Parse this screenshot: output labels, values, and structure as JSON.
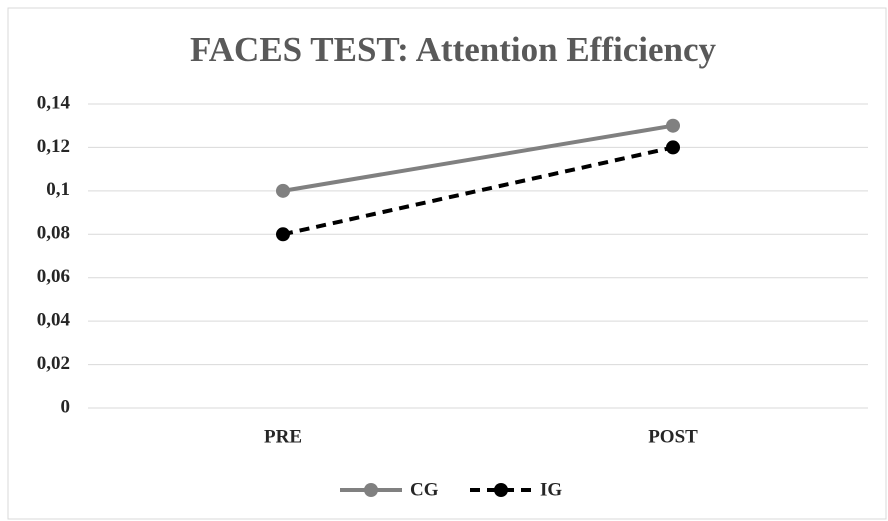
{
  "chart_data": {
    "type": "line",
    "title": "FACES TEST: Attention Efficiency",
    "categories": [
      "PRE",
      "POST"
    ],
    "series": [
      {
        "name": "CG",
        "color": "#808080",
        "line_style": "solid",
        "values": [
          0.1,
          0.13
        ]
      },
      {
        "name": "IG",
        "color": "#000000",
        "line_style": "dashed",
        "values": [
          0.08,
          0.12
        ]
      }
    ],
    "ylim": [
      0,
      0.14
    ],
    "yticks": [
      0,
      {
        "value": 0.02,
        "label": "0,02"
      },
      {
        "value": 0.04,
        "label": "0,04"
      },
      {
        "value": 0.06,
        "label": "0,06"
      },
      {
        "value": 0.08,
        "label": "0,08"
      },
      {
        "value": 0.1,
        "label": "0,1"
      },
      {
        "value": 0.12,
        "label": "0,12"
      },
      {
        "value": 0.14,
        "label": "0,14"
      }
    ],
    "grid": true,
    "legend": "bottom"
  }
}
